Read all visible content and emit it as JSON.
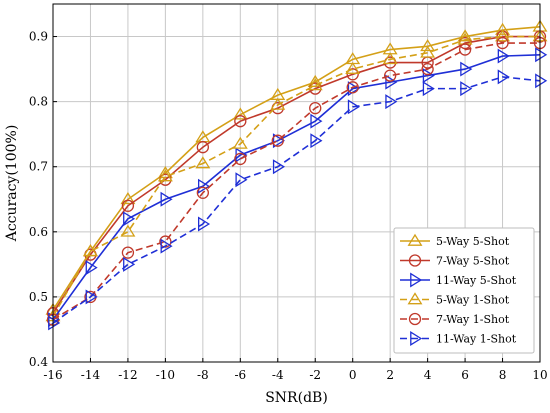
{
  "chart_data": {
    "type": "line",
    "title": "",
    "xlabel": "SNR(dB)",
    "ylabel": "Accuracy(100%)",
    "xlim": [
      -16,
      10
    ],
    "ylim": [
      0.4,
      0.95
    ],
    "x": [
      -16,
      -14,
      -12,
      -10,
      -8,
      -6,
      -4,
      -2,
      0,
      2,
      4,
      6,
      8,
      10
    ],
    "xticks": [
      -16,
      -14,
      -12,
      -10,
      -8,
      -6,
      -4,
      -2,
      0,
      2,
      4,
      6,
      8,
      10
    ],
    "yticks": [
      0.4,
      0.5,
      0.6,
      0.7,
      0.8,
      0.9
    ],
    "grid": true,
    "legend_position": "bottom-right",
    "series": [
      {
        "name": "5-Way 5-Shot",
        "color": "#D4A017",
        "marker": "triangle-up",
        "dash": false,
        "values": [
          0.48,
          0.57,
          0.65,
          0.69,
          0.745,
          0.78,
          0.81,
          0.83,
          0.865,
          0.88,
          0.885,
          0.9,
          0.91,
          0.915
        ]
      },
      {
        "name": "7-Way 5-Shot",
        "color": "#C0392B",
        "marker": "circle",
        "dash": false,
        "values": [
          0.475,
          0.565,
          0.64,
          0.68,
          0.73,
          0.77,
          0.79,
          0.82,
          0.842,
          0.86,
          0.86,
          0.89,
          0.9,
          0.9
        ]
      },
      {
        "name": "11-Way 5-Shot",
        "color": "#1F2FD6",
        "marker": "triangle-right",
        "dash": false,
        "values": [
          0.465,
          0.545,
          0.62,
          0.65,
          0.67,
          0.718,
          0.74,
          0.77,
          0.82,
          0.83,
          0.84,
          0.85,
          0.87,
          0.872
        ]
      },
      {
        "name": "5-Way 1-Shot",
        "color": "#D4A017",
        "marker": "triangle-up",
        "dash": true,
        "values": [
          0.47,
          0.57,
          0.6,
          0.685,
          0.705,
          0.735,
          0.795,
          0.825,
          0.85,
          0.865,
          0.875,
          0.895,
          0.9,
          0.9
        ]
      },
      {
        "name": "7-Way 1-Shot",
        "color": "#C0392B",
        "marker": "circle",
        "dash": true,
        "values": [
          0.465,
          0.5,
          0.568,
          0.585,
          0.66,
          0.712,
          0.74,
          0.79,
          0.822,
          0.84,
          0.85,
          0.88,
          0.89,
          0.89
        ]
      },
      {
        "name": "11-Way 1-Shot",
        "color": "#1F2FD6",
        "marker": "triangle-right",
        "dash": true,
        "values": [
          0.46,
          0.5,
          0.55,
          0.578,
          0.612,
          0.68,
          0.7,
          0.74,
          0.792,
          0.8,
          0.82,
          0.82,
          0.838,
          0.832
        ]
      }
    ]
  }
}
